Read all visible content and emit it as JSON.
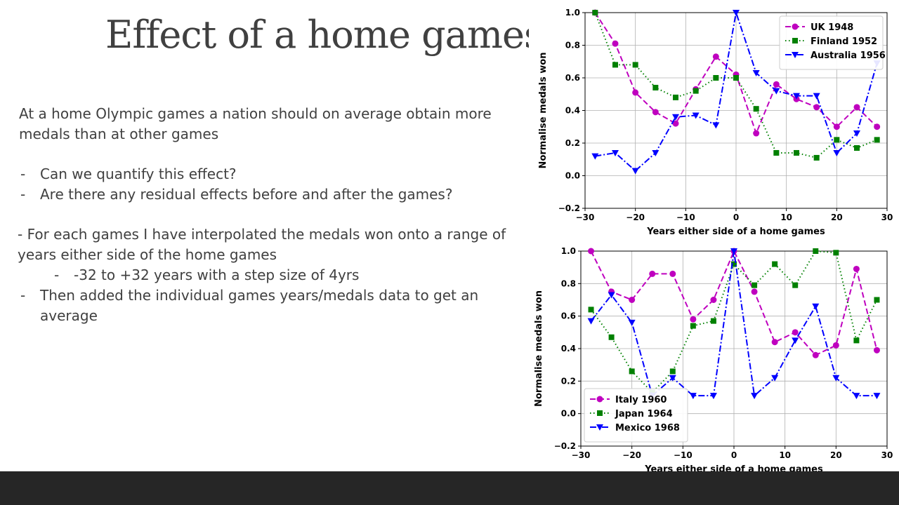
{
  "slide": {
    "title": "Effect of a home games",
    "intro": "At a home Olympic games a nation should on average obtain more medals than at other games",
    "bullets": [
      "Can we quantify this effect?",
      "Are there any residual effects before and after the games?"
    ],
    "method_text": "- For each games I have interpolated the medals won onto a range of years either side of the home games",
    "method_sub": "-32 to +32 years with a step size of 4yrs",
    "method_bullet": "Then added the individual games years/medals data to get an average",
    "dash": "-"
  },
  "chart_data": [
    {
      "type": "line",
      "xlabel": "Years either side of a home games",
      "ylabel": "Normalise medals won",
      "xlim": [
        -30,
        30
      ],
      "ylim": [
        -0.2,
        1.0
      ],
      "xticks": [
        "−30",
        "−20",
        "−10",
        "0",
        "10",
        "20",
        "30"
      ],
      "yticks": [
        "1.0",
        "0.8",
        "0.6",
        "0.4",
        "0.2",
        "0.0",
        "−0.2"
      ],
      "grid": true,
      "legend_position": "top-right",
      "series": [
        {
          "name": "UK 1948",
          "color": "#bf00bf",
          "linestyle": "dashed",
          "marker": "circle",
          "x": [
            -28,
            -24,
            -20,
            -16,
            -12,
            -8,
            -4,
            0,
            4,
            8,
            12,
            16,
            20,
            24,
            28
          ],
          "y": [
            1.0,
            0.81,
            0.51,
            0.39,
            0.32,
            0.53,
            0.73,
            0.62,
            0.26,
            0.56,
            0.47,
            0.42,
            0.3,
            0.42,
            0.3
          ]
        },
        {
          "name": "Finland 1952",
          "color": "#008000",
          "linestyle": "dotted",
          "marker": "square",
          "x": [
            -28,
            -24,
            -20,
            -16,
            -12,
            -8,
            -4,
            0,
            4,
            8,
            12,
            16,
            20,
            24,
            28
          ],
          "y": [
            1.0,
            0.68,
            0.68,
            0.54,
            0.48,
            0.52,
            0.6,
            0.6,
            0.41,
            0.14,
            0.14,
            0.11,
            0.22,
            0.17,
            0.22
          ]
        },
        {
          "name": "Australia 1956",
          "color": "#0000ff",
          "linestyle": "dashdot",
          "marker": "triangle-down",
          "x": [
            -28,
            -24,
            -20,
            -16,
            -12,
            -8,
            -4,
            0,
            4,
            8,
            12,
            16,
            20,
            24,
            28
          ],
          "y": [
            0.12,
            0.14,
            0.03,
            0.14,
            0.36,
            0.37,
            0.31,
            1.0,
            0.63,
            0.52,
            0.49,
            0.49,
            0.14,
            0.26,
            0.69
          ]
        }
      ]
    },
    {
      "type": "line",
      "xlabel": "Years either side of a home games",
      "ylabel": "Normalise medals won",
      "xlim": [
        -30,
        30
      ],
      "ylim": [
        -0.2,
        1.0
      ],
      "xticks": [
        "−30",
        "−20",
        "−10",
        "0",
        "10",
        "20",
        "30"
      ],
      "yticks": [
        "1.0",
        "0.8",
        "0.6",
        "0.4",
        "0.2",
        "0.0",
        "−0.2"
      ],
      "grid": true,
      "legend_position": "bottom-left",
      "series": [
        {
          "name": "Italy 1960",
          "color": "#bf00bf",
          "linestyle": "dashed",
          "marker": "circle",
          "x": [
            -28,
            -24,
            -20,
            -16,
            -12,
            -8,
            -4,
            0,
            4,
            8,
            12,
            16,
            20,
            24,
            28
          ],
          "y": [
            1.0,
            0.75,
            0.7,
            0.86,
            0.86,
            0.58,
            0.7,
            1.0,
            0.75,
            0.44,
            0.5,
            0.36,
            0.42,
            0.89,
            0.39
          ]
        },
        {
          "name": "Japan 1964",
          "color": "#008000",
          "linestyle": "dotted",
          "marker": "square",
          "x": [
            -28,
            -24,
            -20,
            -16,
            -12,
            -8,
            -4,
            0,
            4,
            8,
            12,
            16,
            20,
            24,
            28
          ],
          "y": [
            0.64,
            0.47,
            0.26,
            0.13,
            0.26,
            0.54,
            0.57,
            0.92,
            0.79,
            0.92,
            0.79,
            1.0,
            0.99,
            0.45,
            0.7
          ]
        },
        {
          "name": "Mexico 1968",
          "color": "#0000ff",
          "linestyle": "dashdot",
          "marker": "triangle-down",
          "x": [
            -28,
            -24,
            -20,
            -16,
            -12,
            -8,
            -4,
            0,
            4,
            8,
            12,
            16,
            20,
            24,
            28
          ],
          "y": [
            0.57,
            0.73,
            0.56,
            0.11,
            0.22,
            0.11,
            0.11,
            1.0,
            0.11,
            0.22,
            0.45,
            0.66,
            0.22,
            0.11,
            0.11
          ]
        }
      ]
    }
  ]
}
